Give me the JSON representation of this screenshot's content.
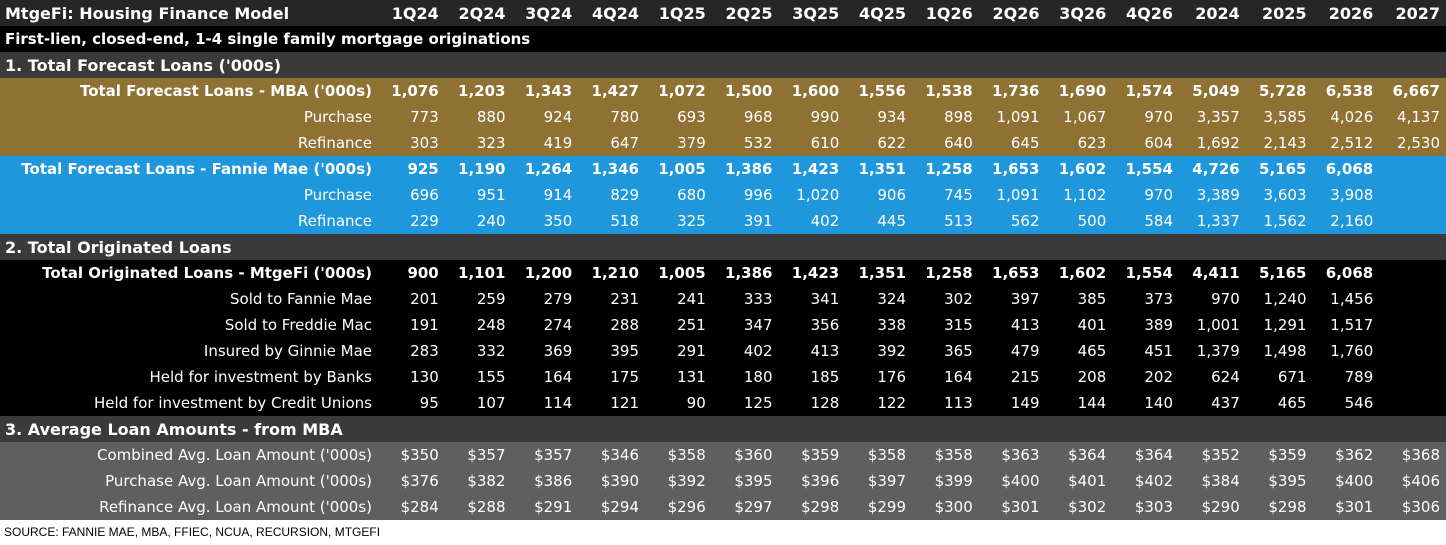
{
  "title": "MtgeFi: Housing Finance Model",
  "columns": [
    "1Q24",
    "2Q24",
    "3Q24",
    "4Q24",
    "1Q25",
    "2Q25",
    "3Q25",
    "4Q25",
    "1Q26",
    "2Q26",
    "3Q26",
    "4Q26",
    "2024",
    "2025",
    "2026",
    "2027"
  ],
  "subtitle": "First-lien, closed-end, 1-4 single family mortgage originations",
  "sections": [
    {
      "title": "1. Total Forecast Loans ('000s)"
    },
    {
      "title": "2. Total Originated Loans"
    },
    {
      "title": "3. Average Loan Amounts - from MBA"
    }
  ],
  "colors": {
    "mba_band": "#8f7233",
    "fannie_band": "#1f97dc",
    "originated_band": "#000000",
    "avg_band": "#5f5f5f",
    "section_band": "#3a3a3a"
  },
  "rows": [
    {
      "label": "Total Forecast Loans - MBA ('000s)",
      "values": [
        "1,076",
        "1,203",
        "1,343",
        "1,427",
        "1,072",
        "1,500",
        "1,600",
        "1,556",
        "1,538",
        "1,736",
        "1,690",
        "1,574",
        "5,049",
        "5,728",
        "6,538",
        "6,667"
      ]
    },
    {
      "label": "Purchase",
      "values": [
        "773",
        "880",
        "924",
        "780",
        "693",
        "968",
        "990",
        "934",
        "898",
        "1,091",
        "1,067",
        "970",
        "3,357",
        "3,585",
        "4,026",
        "4,137"
      ]
    },
    {
      "label": "Refinance",
      "values": [
        "303",
        "323",
        "419",
        "647",
        "379",
        "532",
        "610",
        "622",
        "640",
        "645",
        "623",
        "604",
        "1,692",
        "2,143",
        "2,512",
        "2,530"
      ]
    },
    {
      "label": "Total Forecast Loans - Fannie Mae ('000s)",
      "values": [
        "925",
        "1,190",
        "1,264",
        "1,346",
        "1,005",
        "1,386",
        "1,423",
        "1,351",
        "1,258",
        "1,653",
        "1,602",
        "1,554",
        "4,726",
        "5,165",
        "6,068",
        ""
      ]
    },
    {
      "label": "Purchase",
      "values": [
        "696",
        "951",
        "914",
        "829",
        "680",
        "996",
        "1,020",
        "906",
        "745",
        "1,091",
        "1,102",
        "970",
        "3,389",
        "3,603",
        "3,908",
        ""
      ]
    },
    {
      "label": "Refinance",
      "values": [
        "229",
        "240",
        "350",
        "518",
        "325",
        "391",
        "402",
        "445",
        "513",
        "562",
        "500",
        "584",
        "1,337",
        "1,562",
        "2,160",
        ""
      ]
    },
    {
      "label": "Total Originated Loans - MtgeFi ('000s)",
      "values": [
        "900",
        "1,101",
        "1,200",
        "1,210",
        "1,005",
        "1,386",
        "1,423",
        "1,351",
        "1,258",
        "1,653",
        "1,602",
        "1,554",
        "4,411",
        "5,165",
        "6,068",
        ""
      ]
    },
    {
      "label": "Sold to Fannie Mae",
      "values": [
        "201",
        "259",
        "279",
        "231",
        "241",
        "333",
        "341",
        "324",
        "302",
        "397",
        "385",
        "373",
        "970",
        "1,240",
        "1,456",
        ""
      ]
    },
    {
      "label": "Sold to Freddie Mac",
      "values": [
        "191",
        "248",
        "274",
        "288",
        "251",
        "347",
        "356",
        "338",
        "315",
        "413",
        "401",
        "389",
        "1,001",
        "1,291",
        "1,517",
        ""
      ]
    },
    {
      "label": "Insured by Ginnie Mae",
      "values": [
        "283",
        "332",
        "369",
        "395",
        "291",
        "402",
        "413",
        "392",
        "365",
        "479",
        "465",
        "451",
        "1,379",
        "1,498",
        "1,760",
        ""
      ]
    },
    {
      "label": "Held for investment by Banks",
      "values": [
        "130",
        "155",
        "164",
        "175",
        "131",
        "180",
        "185",
        "176",
        "164",
        "215",
        "208",
        "202",
        "624",
        "671",
        "789",
        ""
      ]
    },
    {
      "label": "Held for investment by Credit Unions",
      "values": [
        "95",
        "107",
        "114",
        "121",
        "90",
        "125",
        "128",
        "122",
        "113",
        "149",
        "144",
        "140",
        "437",
        "465",
        "546",
        ""
      ]
    },
    {
      "label": "Combined Avg. Loan Amount ('000s)",
      "values": [
        "$350",
        "$357",
        "$357",
        "$346",
        "$358",
        "$360",
        "$359",
        "$358",
        "$358",
        "$363",
        "$364",
        "$364",
        "$352",
        "$359",
        "$362",
        "$368"
      ]
    },
    {
      "label": "Purchase Avg. Loan Amount  ('000s)",
      "values": [
        "$376",
        "$382",
        "$386",
        "$390",
        "$392",
        "$395",
        "$396",
        "$397",
        "$399",
        "$400",
        "$401",
        "$402",
        "$384",
        "$395",
        "$400",
        "$406"
      ]
    },
    {
      "label": "Refinance Avg. Loan Amount  ('000s)",
      "values": [
        "$284",
        "$288",
        "$291",
        "$294",
        "$296",
        "$297",
        "$298",
        "$299",
        "$300",
        "$301",
        "$302",
        "$303",
        "$290",
        "$298",
        "$301",
        "$306"
      ]
    }
  ],
  "source": "SOURCE: FANNIE MAE, MBA, FFIEC, NCUA, RECURSION, MTGEFI"
}
